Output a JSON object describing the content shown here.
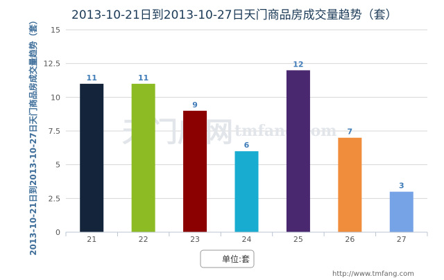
{
  "chart_data": {
    "type": "bar",
    "title": "2013-10-21日到2013-10-27日天门商品房成交量趋势（套）",
    "ylabel": "2013-10-21日到2013-10-27日天门商品房成交量趋势（套）",
    "xlabel": "",
    "categories": [
      "21",
      "22",
      "23",
      "24",
      "25",
      "26",
      "27"
    ],
    "values": [
      11,
      11,
      9,
      6,
      12,
      7,
      3
    ],
    "colors": [
      "#13243b",
      "#8dbb24",
      "#8b0000",
      "#19acd1",
      "#4a2870",
      "#f08d3c",
      "#76a2e6"
    ],
    "ylim": [
      0,
      15
    ],
    "yticks": [
      "0",
      "2.5",
      "5",
      "7.5",
      "10",
      "12.5",
      "15"
    ],
    "grid": true,
    "legend": {
      "label": "单位:套",
      "placement": "bottom-center"
    },
    "data_label_color": "#3f7cb8"
  },
  "watermark": {
    "logo_text": "天门房网",
    "domain_text": "tmfang.com"
  },
  "footer": {
    "url": "http://www.tmfang.com"
  }
}
